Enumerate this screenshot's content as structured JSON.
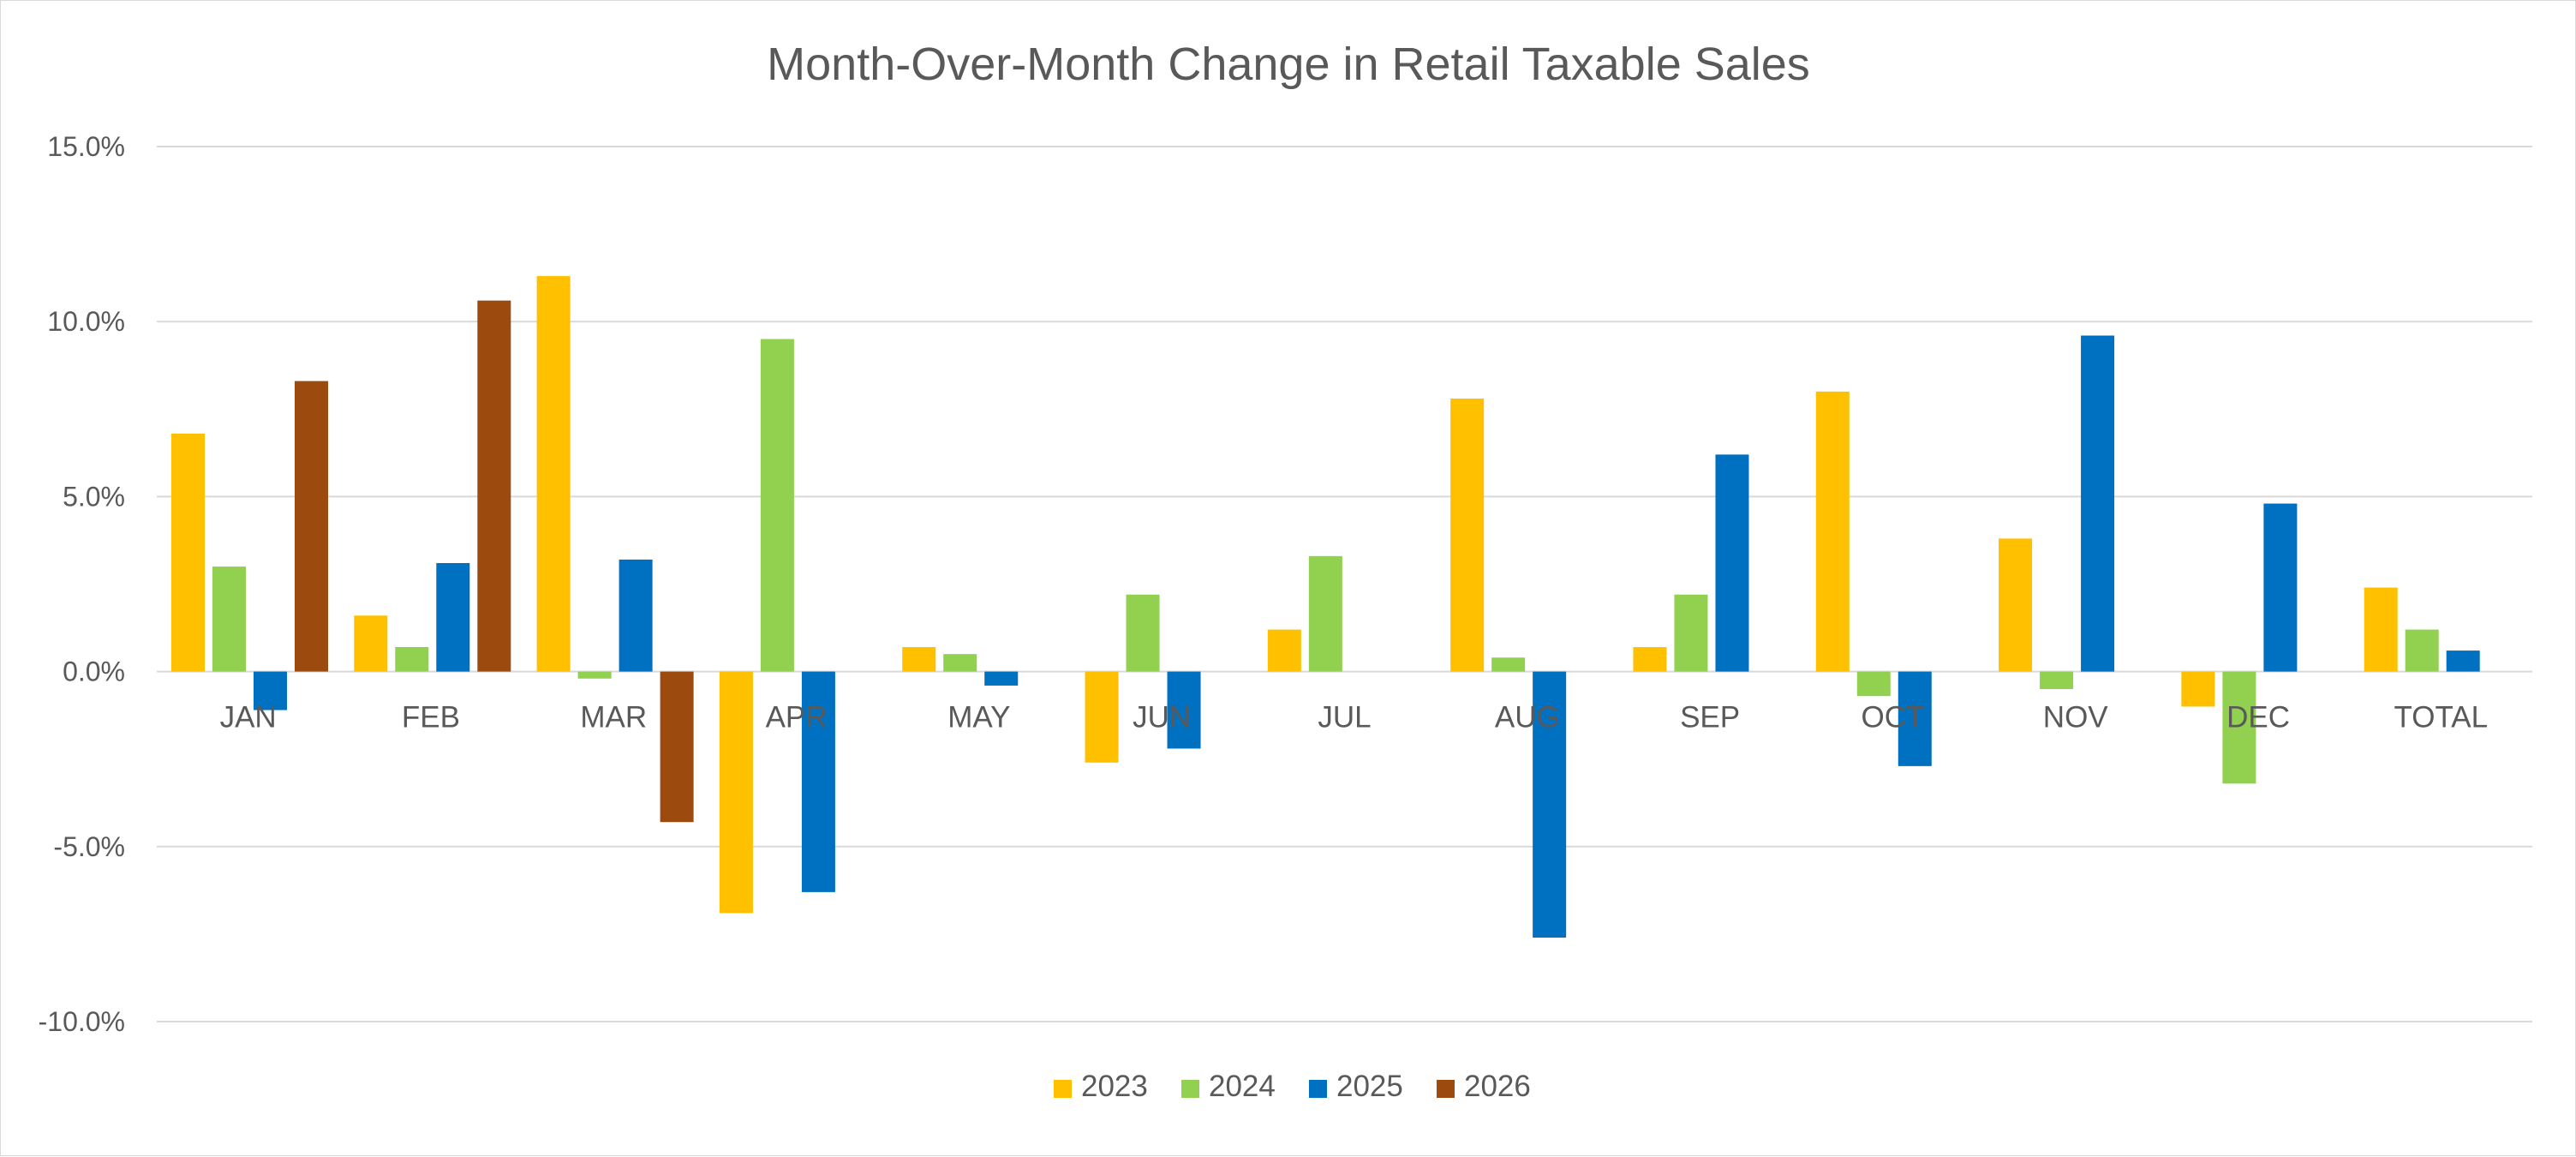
{
  "chart_data": {
    "type": "bar",
    "title": "Month-Over-Month Change in Retail Taxable Sales",
    "xlabel": "",
    "ylabel": "",
    "ylim": [
      -0.1,
      0.15
    ],
    "yticks": [
      {
        "value": 0.15,
        "label": "15.0%"
      },
      {
        "value": 0.1,
        "label": "10.0%"
      },
      {
        "value": 0.05,
        "label": "5.0%"
      },
      {
        "value": 0.0,
        "label": "0.0%"
      },
      {
        "value": -0.05,
        "label": "-5.0%"
      },
      {
        "value": -0.1,
        "label": "-10.0%"
      }
    ],
    "grid": true,
    "legend_position": "bottom",
    "categories": [
      "JAN",
      "FEB",
      "MAR",
      "APR",
      "MAY",
      "JUN",
      "JUL",
      "AUG",
      "SEP",
      "OCT",
      "NOV",
      "DEC",
      "TOTAL"
    ],
    "series": [
      {
        "name": "2023",
        "color": "#FFC000",
        "values": [
          0.068,
          0.016,
          0.113,
          -0.069,
          0.007,
          -0.026,
          0.012,
          0.078,
          0.007,
          0.08,
          0.038,
          -0.01,
          0.024
        ]
      },
      {
        "name": "2024",
        "color": "#92D050",
        "values": [
          0.03,
          0.007,
          -0.002,
          0.095,
          0.005,
          0.022,
          0.033,
          0.004,
          0.022,
          -0.007,
          -0.005,
          -0.032,
          0.012
        ]
      },
      {
        "name": "2025",
        "color": "#0070C0",
        "values": [
          -0.011,
          0.031,
          0.032,
          -0.063,
          -0.004,
          -0.022,
          null,
          -0.076,
          0.062,
          -0.027,
          0.096,
          0.048,
          0.006
        ]
      },
      {
        "name": "2026",
        "color": "#9C4A0E",
        "values": [
          0.083,
          0.106,
          -0.043,
          null,
          null,
          null,
          null,
          null,
          null,
          null,
          null,
          null,
          null
        ]
      }
    ]
  }
}
